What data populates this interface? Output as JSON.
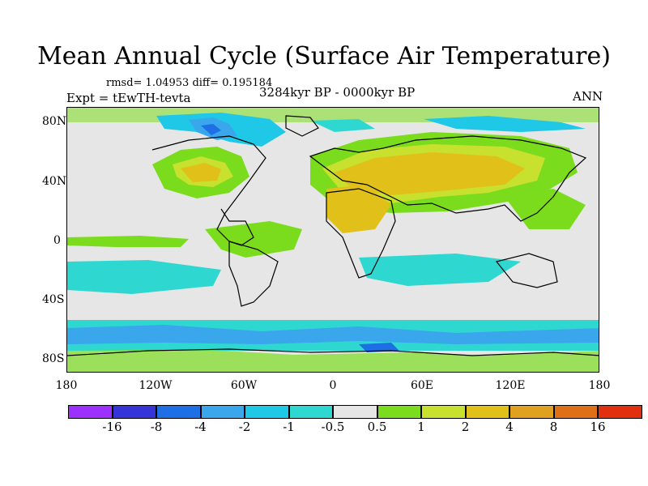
{
  "title": "Mean Annual Cycle (Surface Air Temperature)",
  "stats": "rmsd= 1.04953 diff= 0.195184",
  "experiment": "Expt = tEwTH-tevta",
  "period": "3284kyr BP - 0000kyr BP",
  "season": "ANN",
  "lat_labels": [
    "80N",
    "40N",
    "0",
    "40S",
    "80S"
  ],
  "lon_labels": [
    "180",
    "120W",
    "60W",
    "0",
    "60E",
    "120E",
    "180"
  ],
  "colorbar": {
    "colors": [
      "#9b30ff",
      "#3434d9",
      "#1e6fe6",
      "#3aa6ec",
      "#1fc8e6",
      "#2ed8d0",
      "#e6e6e6",
      "#7bdc1e",
      "#c8e02e",
      "#e0c019",
      "#e0a020",
      "#e07018",
      "#e03010"
    ],
    "labels": [
      "-16",
      "-8",
      "-4",
      "-2",
      "-1",
      "-0.5",
      "0.5",
      "1",
      "2",
      "4",
      "8",
      "16"
    ]
  }
}
